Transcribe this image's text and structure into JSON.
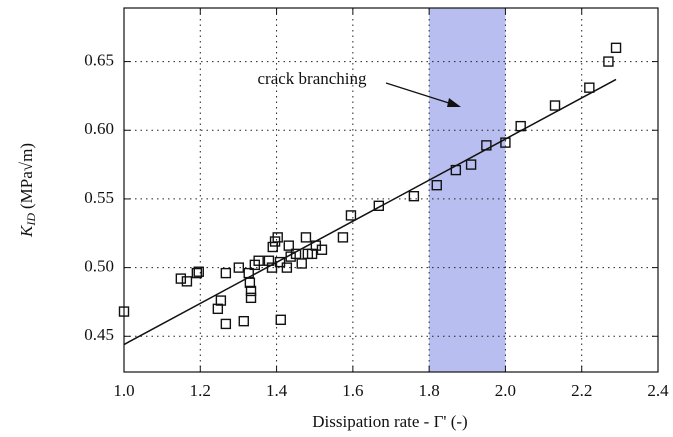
{
  "chart_data": {
    "type": "scatter",
    "x_label": "Dissipation rate - Γ' (-)",
    "y_label_symbol": "K",
    "y_label_subscript": "ID",
    "y_label_unit": "(MPa√m)",
    "annotation": "crack branching",
    "xlim": [
      1.0,
      2.4
    ],
    "ylim": [
      0.424,
      0.689
    ],
    "xticks": [
      {
        "value": 1.0,
        "label": "1.0"
      },
      1.2,
      1.4,
      1.6,
      1.8,
      {
        "value": 2.0,
        "label": "2.0"
      },
      2.2,
      2.4
    ],
    "yticks": [
      0.45,
      {
        "value": 0.5,
        "label": "0.50"
      },
      0.55,
      {
        "value": 0.6,
        "label": "0.60"
      },
      0.65
    ],
    "grid": true,
    "band": [
      1.8,
      2.0
    ],
    "band_color": "#b9bef0",
    "color": "#111111",
    "fit": {
      "x": [
        1.0,
        2.29
      ],
      "y": [
        0.444,
        0.637
      ]
    },
    "x": [
      1.0,
      1.149,
      1.165,
      1.191,
      1.196,
      1.246,
      1.254,
      1.267,
      1.267,
      1.301,
      1.314,
      1.327,
      1.33,
      1.333,
      1.333,
      1.343,
      1.353,
      1.38,
      1.388,
      1.39,
      1.396,
      1.403,
      1.409,
      1.411,
      1.427,
      1.432,
      1.437,
      1.451,
      1.466,
      1.477,
      1.482,
      1.493,
      1.503,
      1.519,
      1.574,
      1.595,
      1.668,
      1.76,
      1.82,
      1.87,
      1.91,
      1.95,
      2.0,
      2.04,
      2.13,
      2.22,
      2.27,
      2.29
    ],
    "y": [
      0.468,
      0.492,
      0.49,
      0.496,
      0.497,
      0.47,
      0.476,
      0.459,
      0.496,
      0.5,
      0.461,
      0.496,
      0.489,
      0.483,
      0.478,
      0.502,
      0.505,
      0.505,
      0.5,
      0.515,
      0.519,
      0.522,
      0.504,
      0.462,
      0.5,
      0.516,
      0.508,
      0.51,
      0.503,
      0.522,
      0.51,
      0.51,
      0.516,
      0.513,
      0.522,
      0.538,
      0.545,
      0.552,
      0.56,
      0.571,
      0.575,
      0.589,
      0.591,
      0.603,
      0.618,
      0.631,
      0.65,
      0.66
    ]
  }
}
